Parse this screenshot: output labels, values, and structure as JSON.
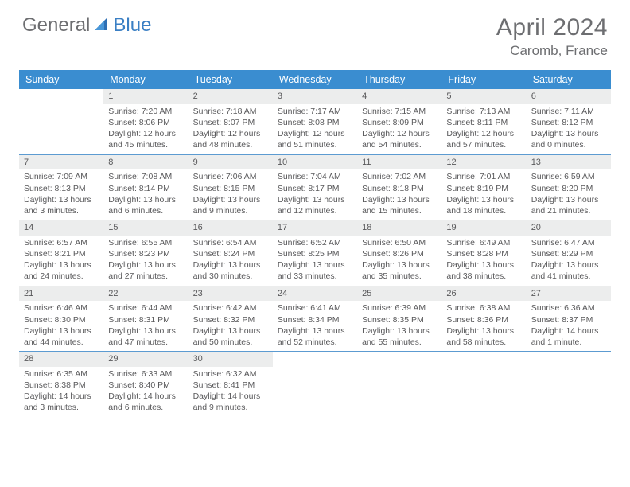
{
  "brand": {
    "part1": "General",
    "part2": "Blue"
  },
  "title": "April 2024",
  "location": "Caromb, France",
  "colors": {
    "header_blue": "#3a8dd0",
    "rule_blue": "#5c9bd1",
    "daynum_bg": "#eceded",
    "text": "#59595b",
    "brand_blue": "#3a7fc4",
    "brand_gray": "#6d6e71"
  },
  "dow": [
    "Sunday",
    "Monday",
    "Tuesday",
    "Wednesday",
    "Thursday",
    "Friday",
    "Saturday"
  ],
  "weeks": [
    [
      {
        "n": "",
        "lines": []
      },
      {
        "n": "1",
        "lines": [
          "Sunrise: 7:20 AM",
          "Sunset: 8:06 PM",
          "Daylight: 12 hours",
          "and 45 minutes."
        ]
      },
      {
        "n": "2",
        "lines": [
          "Sunrise: 7:18 AM",
          "Sunset: 8:07 PM",
          "Daylight: 12 hours",
          "and 48 minutes."
        ]
      },
      {
        "n": "3",
        "lines": [
          "Sunrise: 7:17 AM",
          "Sunset: 8:08 PM",
          "Daylight: 12 hours",
          "and 51 minutes."
        ]
      },
      {
        "n": "4",
        "lines": [
          "Sunrise: 7:15 AM",
          "Sunset: 8:09 PM",
          "Daylight: 12 hours",
          "and 54 minutes."
        ]
      },
      {
        "n": "5",
        "lines": [
          "Sunrise: 7:13 AM",
          "Sunset: 8:11 PM",
          "Daylight: 12 hours",
          "and 57 minutes."
        ]
      },
      {
        "n": "6",
        "lines": [
          "Sunrise: 7:11 AM",
          "Sunset: 8:12 PM",
          "Daylight: 13 hours",
          "and 0 minutes."
        ]
      }
    ],
    [
      {
        "n": "7",
        "lines": [
          "Sunrise: 7:09 AM",
          "Sunset: 8:13 PM",
          "Daylight: 13 hours",
          "and 3 minutes."
        ]
      },
      {
        "n": "8",
        "lines": [
          "Sunrise: 7:08 AM",
          "Sunset: 8:14 PM",
          "Daylight: 13 hours",
          "and 6 minutes."
        ]
      },
      {
        "n": "9",
        "lines": [
          "Sunrise: 7:06 AM",
          "Sunset: 8:15 PM",
          "Daylight: 13 hours",
          "and 9 minutes."
        ]
      },
      {
        "n": "10",
        "lines": [
          "Sunrise: 7:04 AM",
          "Sunset: 8:17 PM",
          "Daylight: 13 hours",
          "and 12 minutes."
        ]
      },
      {
        "n": "11",
        "lines": [
          "Sunrise: 7:02 AM",
          "Sunset: 8:18 PM",
          "Daylight: 13 hours",
          "and 15 minutes."
        ]
      },
      {
        "n": "12",
        "lines": [
          "Sunrise: 7:01 AM",
          "Sunset: 8:19 PM",
          "Daylight: 13 hours",
          "and 18 minutes."
        ]
      },
      {
        "n": "13",
        "lines": [
          "Sunrise: 6:59 AM",
          "Sunset: 8:20 PM",
          "Daylight: 13 hours",
          "and 21 minutes."
        ]
      }
    ],
    [
      {
        "n": "14",
        "lines": [
          "Sunrise: 6:57 AM",
          "Sunset: 8:21 PM",
          "Daylight: 13 hours",
          "and 24 minutes."
        ]
      },
      {
        "n": "15",
        "lines": [
          "Sunrise: 6:55 AM",
          "Sunset: 8:23 PM",
          "Daylight: 13 hours",
          "and 27 minutes."
        ]
      },
      {
        "n": "16",
        "lines": [
          "Sunrise: 6:54 AM",
          "Sunset: 8:24 PM",
          "Daylight: 13 hours",
          "and 30 minutes."
        ]
      },
      {
        "n": "17",
        "lines": [
          "Sunrise: 6:52 AM",
          "Sunset: 8:25 PM",
          "Daylight: 13 hours",
          "and 33 minutes."
        ]
      },
      {
        "n": "18",
        "lines": [
          "Sunrise: 6:50 AM",
          "Sunset: 8:26 PM",
          "Daylight: 13 hours",
          "and 35 minutes."
        ]
      },
      {
        "n": "19",
        "lines": [
          "Sunrise: 6:49 AM",
          "Sunset: 8:28 PM",
          "Daylight: 13 hours",
          "and 38 minutes."
        ]
      },
      {
        "n": "20",
        "lines": [
          "Sunrise: 6:47 AM",
          "Sunset: 8:29 PM",
          "Daylight: 13 hours",
          "and 41 minutes."
        ]
      }
    ],
    [
      {
        "n": "21",
        "lines": [
          "Sunrise: 6:46 AM",
          "Sunset: 8:30 PM",
          "Daylight: 13 hours",
          "and 44 minutes."
        ]
      },
      {
        "n": "22",
        "lines": [
          "Sunrise: 6:44 AM",
          "Sunset: 8:31 PM",
          "Daylight: 13 hours",
          "and 47 minutes."
        ]
      },
      {
        "n": "23",
        "lines": [
          "Sunrise: 6:42 AM",
          "Sunset: 8:32 PM",
          "Daylight: 13 hours",
          "and 50 minutes."
        ]
      },
      {
        "n": "24",
        "lines": [
          "Sunrise: 6:41 AM",
          "Sunset: 8:34 PM",
          "Daylight: 13 hours",
          "and 52 minutes."
        ]
      },
      {
        "n": "25",
        "lines": [
          "Sunrise: 6:39 AM",
          "Sunset: 8:35 PM",
          "Daylight: 13 hours",
          "and 55 minutes."
        ]
      },
      {
        "n": "26",
        "lines": [
          "Sunrise: 6:38 AM",
          "Sunset: 8:36 PM",
          "Daylight: 13 hours",
          "and 58 minutes."
        ]
      },
      {
        "n": "27",
        "lines": [
          "Sunrise: 6:36 AM",
          "Sunset: 8:37 PM",
          "Daylight: 14 hours",
          "and 1 minute."
        ]
      }
    ],
    [
      {
        "n": "28",
        "lines": [
          "Sunrise: 6:35 AM",
          "Sunset: 8:38 PM",
          "Daylight: 14 hours",
          "and 3 minutes."
        ]
      },
      {
        "n": "29",
        "lines": [
          "Sunrise: 6:33 AM",
          "Sunset: 8:40 PM",
          "Daylight: 14 hours",
          "and 6 minutes."
        ]
      },
      {
        "n": "30",
        "lines": [
          "Sunrise: 6:32 AM",
          "Sunset: 8:41 PM",
          "Daylight: 14 hours",
          "and 9 minutes."
        ]
      },
      {
        "n": "",
        "lines": []
      },
      {
        "n": "",
        "lines": []
      },
      {
        "n": "",
        "lines": []
      },
      {
        "n": "",
        "lines": []
      }
    ]
  ]
}
